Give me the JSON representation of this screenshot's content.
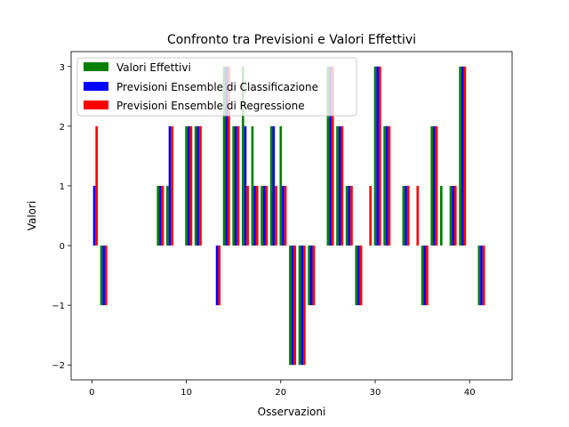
{
  "chart_data": {
    "type": "bar",
    "title": "Confronto tra Previsioni e Valori Effettivi",
    "xlabel": "Osservazioni",
    "ylabel": "Valori",
    "xlim": [
      -2.2,
      44.5
    ],
    "ylim": [
      -2.25,
      3.25
    ],
    "xticks": [
      0,
      10,
      20,
      30,
      40
    ],
    "yticks": [
      -2,
      -1,
      0,
      1,
      2,
      3
    ],
    "tick_labels_x": [
      "0",
      "10",
      "20",
      "30",
      "40"
    ],
    "tick_labels_y": [
      "−2",
      "−1",
      "0",
      "1",
      "2",
      "3"
    ],
    "legend_position": "top-left",
    "grid": false,
    "bar_width": 0.25,
    "x": [
      0,
      1,
      2,
      3,
      4,
      5,
      6,
      7,
      8,
      9,
      10,
      11,
      12,
      13,
      14,
      15,
      16,
      17,
      18,
      19,
      20,
      21,
      22,
      23,
      24,
      25,
      26,
      27,
      28,
      29,
      30,
      31,
      32,
      33,
      34,
      35,
      36,
      37,
      38,
      39,
      40,
      41
    ],
    "series": [
      {
        "name": "Valori Effettivi",
        "color": "#008000",
        "offset": 0,
        "values": [
          0,
          -1,
          0,
          0,
          0,
          0,
          0,
          1,
          1,
          0,
          2,
          2,
          0,
          0,
          3,
          2,
          3,
          2,
          1,
          2,
          2,
          -2,
          -2,
          -1,
          0,
          3,
          2,
          1,
          -1,
          0,
          3,
          2,
          0,
          1,
          0,
          -1,
          2,
          1,
          1,
          3,
          0,
          -1
        ]
      },
      {
        "name": "Previsioni Ensemble di Classificazione",
        "color": "#0000ff",
        "offset": 0.25,
        "values": [
          1,
          -1,
          0,
          0,
          0,
          0,
          0,
          1,
          2,
          0,
          2,
          2,
          0,
          -1,
          3,
          2,
          2,
          1,
          1,
          2,
          1,
          -2,
          -2,
          -1,
          0,
          3,
          2,
          1,
          -1,
          0,
          3,
          2,
          0,
          1,
          0,
          -1,
          2,
          0,
          1,
          3,
          0,
          -1
        ]
      },
      {
        "name": "Previsioni Ensemble di Regressione",
        "color": "#ff0000",
        "offset": 0.5,
        "values": [
          2,
          -1,
          0,
          0,
          0,
          0,
          0,
          1,
          2,
          0,
          2,
          2,
          0,
          -1,
          3,
          2,
          1,
          1,
          1,
          1,
          1,
          -2,
          -2,
          -1,
          0,
          3,
          2,
          1,
          -1,
          1,
          3,
          2,
          0,
          1,
          1,
          -1,
          2,
          0,
          1,
          3,
          0,
          -1
        ]
      }
    ]
  }
}
